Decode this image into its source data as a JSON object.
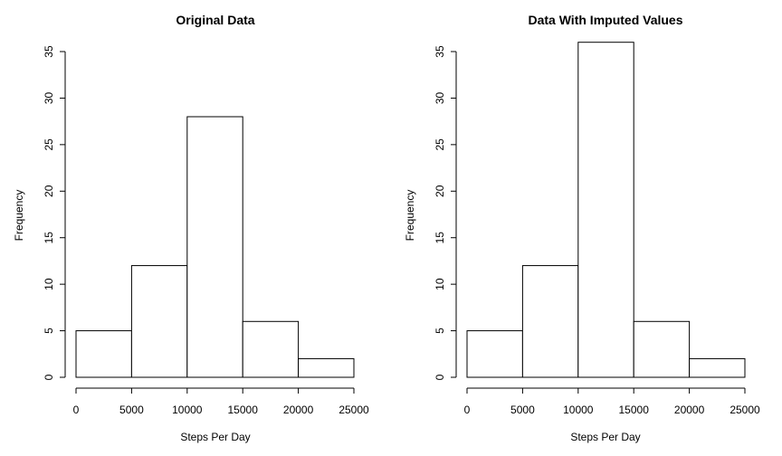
{
  "chart_data": [
    {
      "type": "bar",
      "title": "Original Data",
      "xlabel": "Steps Per Day",
      "ylabel": "Frequency",
      "bins": [
        [
          0,
          5000
        ],
        [
          5000,
          10000
        ],
        [
          10000,
          15000
        ],
        [
          15000,
          20000
        ],
        [
          20000,
          25000
        ]
      ],
      "values": [
        5,
        12,
        28,
        6,
        2
      ],
      "xlim": [
        0,
        25000
      ],
      "ylim": [
        0,
        35
      ],
      "x_ticks": [
        0,
        5000,
        10000,
        15000,
        20000,
        25000
      ],
      "y_ticks": [
        0,
        5,
        10,
        15,
        20,
        25,
        30,
        35
      ],
      "grid": false
    },
    {
      "type": "bar",
      "title": "Data With Imputed Values",
      "xlabel": "Steps Per Day",
      "ylabel": "Frequency",
      "bins": [
        [
          0,
          5000
        ],
        [
          5000,
          10000
        ],
        [
          10000,
          15000
        ],
        [
          15000,
          20000
        ],
        [
          20000,
          25000
        ]
      ],
      "values": [
        5,
        12,
        36,
        6,
        2
      ],
      "xlim": [
        0,
        25000
      ],
      "ylim": [
        0,
        35
      ],
      "x_ticks": [
        0,
        5000,
        10000,
        15000,
        20000,
        25000
      ],
      "y_ticks": [
        0,
        5,
        10,
        15,
        20,
        25,
        30,
        35
      ],
      "grid": false
    }
  ],
  "colors": {
    "background": "#ffffff",
    "bar_fill": "#ffffff",
    "bar_stroke": "#000000",
    "text": "#000000"
  }
}
